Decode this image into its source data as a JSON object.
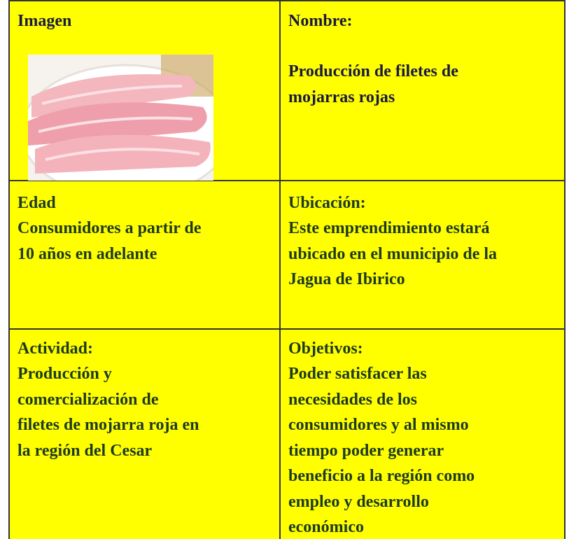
{
  "table": {
    "rows": [
      [
        {
          "label": "Imagen",
          "lines": []
        },
        {
          "label": "Nombre:",
          "lines": [
            "Producción de filetes de",
            "mojarras rojas"
          ]
        }
      ],
      [
        {
          "label": "Edad",
          "lines": [
            "Consumidores a partir de",
            "10 años en adelante"
          ]
        },
        {
          "label": "Ubicación:",
          "lines": [
            "Este emprendimiento estará",
            "ubicado en el municipio de la",
            "Jagua de Ibirico"
          ]
        }
      ],
      [
        {
          "label": "Actividad:",
          "lines": [
            "Producción y",
            "comercialización de",
            "filetes de mojarra roja en",
            "la región del Cesar"
          ]
        },
        {
          "label": "Objetivos:",
          "lines": [
            "Poder satisfacer las",
            "necesidades de los",
            "consumidores y al mismo",
            "tiempo poder generar",
            "beneficio a la región como",
            "empleo y desarrollo",
            "económico"
          ]
        }
      ]
    ]
  }
}
